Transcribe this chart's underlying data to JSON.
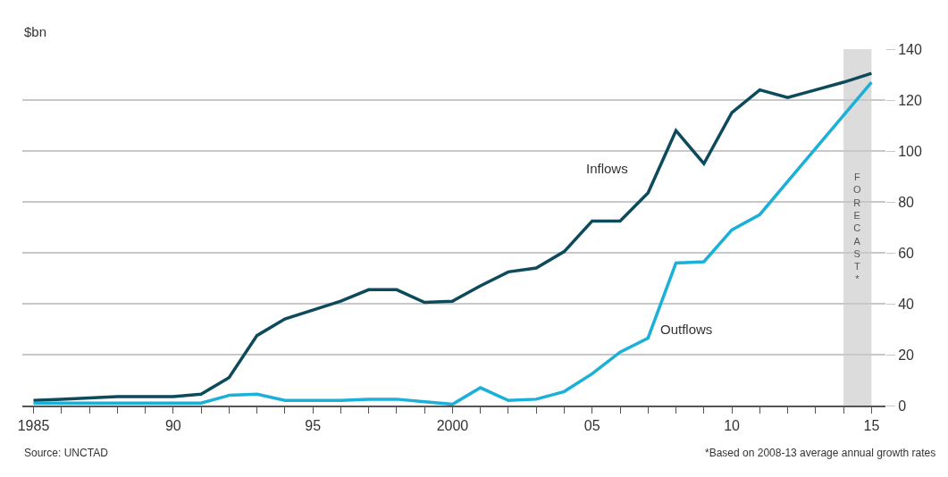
{
  "chart_data": {
    "type": "line",
    "ylabel": "$bn",
    "x": [
      1985,
      1986,
      1987,
      1988,
      1989,
      1990,
      1991,
      1992,
      1993,
      1994,
      1995,
      1996,
      1997,
      1998,
      1999,
      2000,
      2001,
      2002,
      2003,
      2004,
      2005,
      2006,
      2007,
      2008,
      2009,
      2010,
      2011,
      2012,
      2013,
      2014,
      2015
    ],
    "series": [
      {
        "name": "Inflows",
        "color": "#0d4a5c",
        "values": [
          2,
          2.5,
          3,
          3.5,
          3.5,
          3.5,
          4.5,
          11,
          27.5,
          34,
          37.5,
          41,
          45.5,
          45.5,
          40.5,
          41,
          47,
          52.5,
          54,
          60.5,
          72.5,
          72.5,
          83.5,
          108,
          95,
          115,
          124,
          121,
          124,
          127,
          130.5
        ]
      },
      {
        "name": "Outflows",
        "color": "#1ab0d8",
        "values": [
          1,
          1,
          1,
          1,
          1,
          1,
          1,
          4,
          4.5,
          2,
          2,
          2,
          2.5,
          2.5,
          1.5,
          0.5,
          7,
          2,
          2.5,
          5.5,
          12.5,
          21,
          26.5,
          56,
          56.5,
          69,
          75,
          88,
          101,
          114,
          127
        ]
      }
    ],
    "xlim": [
      1984.6,
      2015.5
    ],
    "xticks": [
      1985,
      {
        "value": 1986,
        "label": null
      },
      {
        "value": 1987,
        "label": null
      },
      {
        "value": 1988,
        "label": null
      },
      {
        "value": 1989,
        "label": null
      },
      {
        "value": 1990,
        "label": "90"
      },
      {
        "value": 1991,
        "label": null
      },
      {
        "value": 1992,
        "label": null
      },
      {
        "value": 1993,
        "label": null
      },
      {
        "value": 1994,
        "label": null
      },
      {
        "value": 1995,
        "label": "95"
      },
      {
        "value": 1996,
        "label": null
      },
      {
        "value": 1997,
        "label": null
      },
      {
        "value": 1998,
        "label": null
      },
      {
        "value": 1999,
        "label": null
      },
      2000,
      {
        "value": 2001,
        "label": null
      },
      {
        "value": 2002,
        "label": null
      },
      {
        "value": 2003,
        "label": null
      },
      {
        "value": 2004,
        "label": null
      },
      {
        "value": 2005,
        "label": "05"
      },
      {
        "value": 2006,
        "label": null
      },
      {
        "value": 2007,
        "label": null
      },
      {
        "value": 2008,
        "label": null
      },
      {
        "value": 2009,
        "label": null
      },
      {
        "value": 2010,
        "label": "10"
      },
      {
        "value": 2011,
        "label": null
      },
      {
        "value": 2012,
        "label": null
      },
      {
        "value": 2013,
        "label": null
      },
      {
        "value": 2014,
        "label": null
      },
      {
        "value": 2015,
        "label": "15"
      }
    ],
    "ylim": [
      0,
      140
    ],
    "yticks": [
      0,
      20,
      40,
      60,
      80,
      100,
      120,
      140
    ],
    "grid": "y",
    "legend": false,
    "bands": [
      {
        "axis": "x",
        "from": 2014,
        "to": 2015,
        "label": "FORECAST*",
        "color": "#dcdcdc"
      }
    ],
    "annotations": [
      "Source: UNCTAD",
      "*Based on 2008-13 average annual growth rates"
    ]
  }
}
